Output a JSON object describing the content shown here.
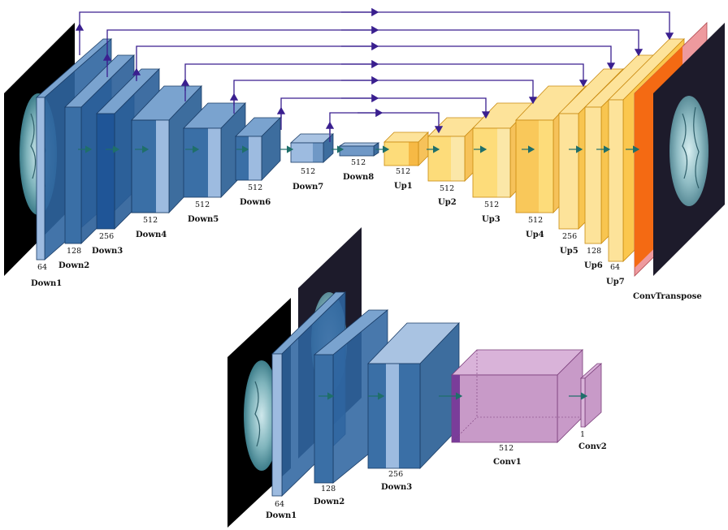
{
  "generator": {
    "down": [
      {
        "name": "Down1",
        "channels": "64"
      },
      {
        "name": "Down2",
        "channels": "128"
      },
      {
        "name": "Down3",
        "channels": "256"
      },
      {
        "name": "Down4",
        "channels": "512"
      },
      {
        "name": "Down5",
        "channels": "512"
      },
      {
        "name": "Down6",
        "channels": "512"
      },
      {
        "name": "Down7",
        "channels": "512"
      },
      {
        "name": "Down8",
        "channels": "512"
      }
    ],
    "up": [
      {
        "name": "Up1",
        "channels": "512"
      },
      {
        "name": "Up2",
        "channels": "512"
      },
      {
        "name": "Up3",
        "channels": "512"
      },
      {
        "name": "Up4",
        "channels": "512"
      },
      {
        "name": "Up5",
        "channels": "256"
      },
      {
        "name": "Up6",
        "channels": "128"
      },
      {
        "name": "Up7",
        "channels": "64"
      }
    ],
    "output": {
      "name": "ConvTranspose"
    }
  },
  "discriminator": {
    "layers": [
      {
        "name": "Down1",
        "channels": "64"
      },
      {
        "name": "Down2",
        "channels": "128"
      },
      {
        "name": "Down3",
        "channels": "256"
      },
      {
        "name": "Conv1",
        "channels": "512"
      },
      {
        "name": "Conv2",
        "channels": "1"
      }
    ]
  },
  "colors": {
    "encoder_face": "#3a6fa6",
    "encoder_light": "#9dbbe0",
    "decoder_face": "#fddc7a",
    "decoder_dark": "#f6b945",
    "output_orange": "#f46a13",
    "output_pink": "#ee9a9e",
    "conv_purple": "#c89ac8",
    "skip_arrow": "#3a1f8f",
    "flow_arrow": "#1f6f6a"
  },
  "icons": {
    "input_image": "brain-mri-slice",
    "target_image": "brain-mri-slice-dark"
  }
}
